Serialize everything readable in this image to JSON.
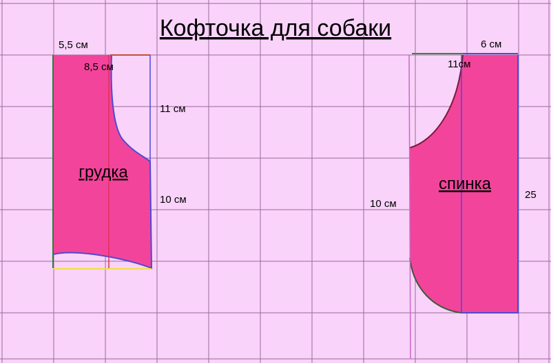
{
  "title": "Кофточка для собаки",
  "front": {
    "name": "грудка",
    "labels": [
      "5,5 см",
      "8,5 см",
      "11 см",
      "10 см"
    ]
  },
  "back": {
    "name": "спинка",
    "labels": [
      "6 см",
      "11см",
      "10 см",
      "25"
    ]
  }
}
